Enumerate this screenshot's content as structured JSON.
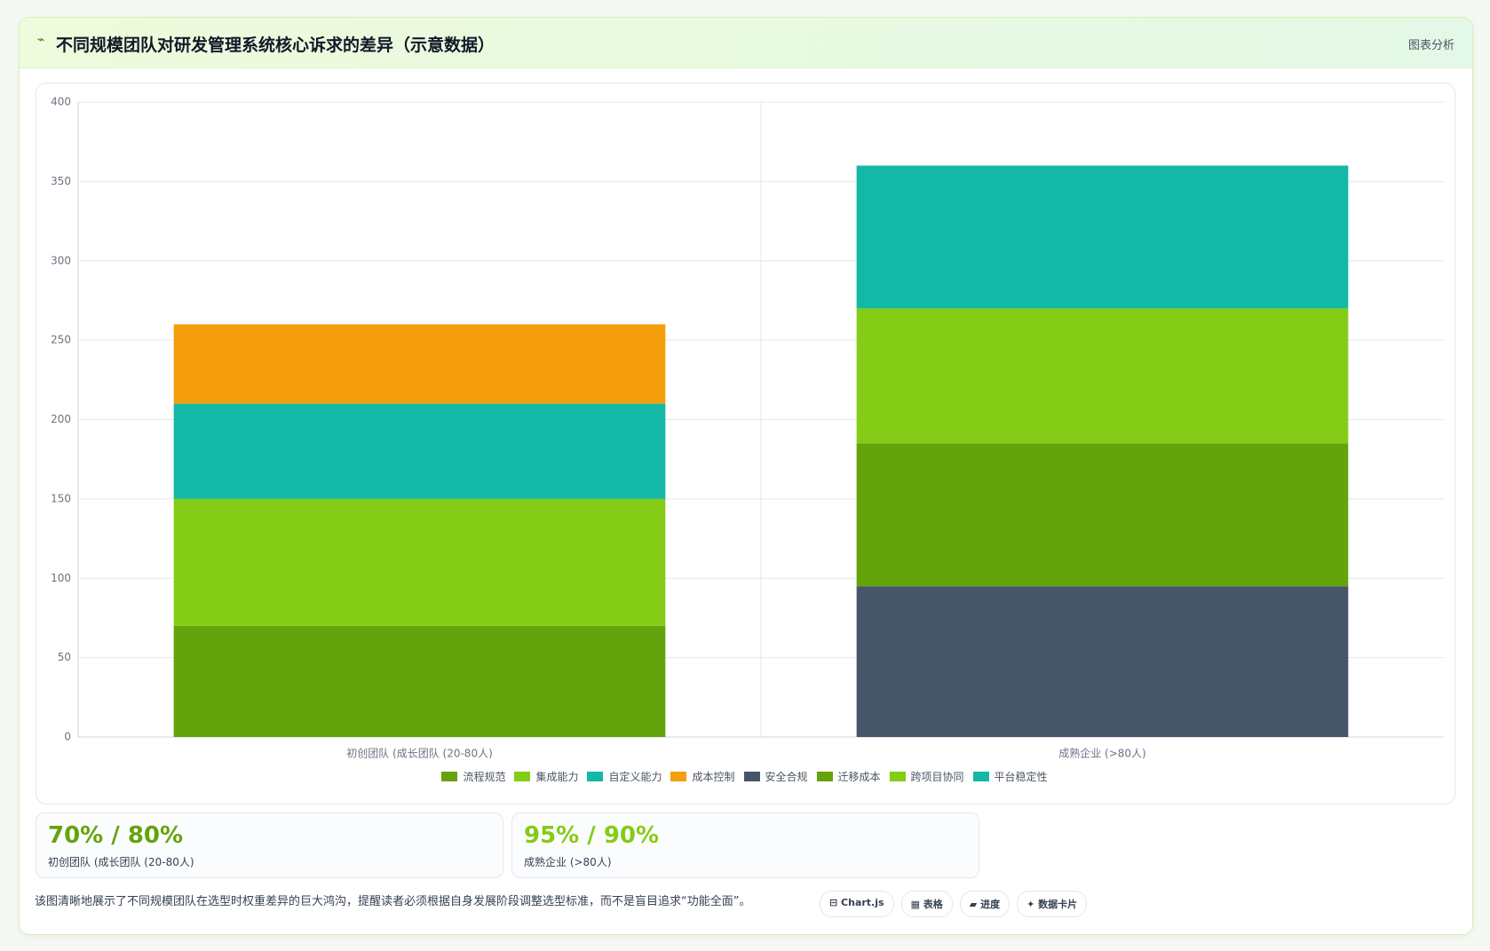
{
  "header": {
    "icon": "⌁",
    "title": "不同规模团队对研发管理系统核心诉求的差异（示意数据）",
    "tag": "图表分析"
  },
  "chart_data": {
    "type": "bar",
    "stacked": true,
    "categories": [
      "初创团队 (成长团队 (20-80人)",
      "成熟企业 (>80人)"
    ],
    "series": [
      {
        "name": "流程规范",
        "color": "#65a30d",
        "values": [
          70,
          null
        ]
      },
      {
        "name": "集成能力",
        "color": "#84cc16",
        "values": [
          80,
          null
        ]
      },
      {
        "name": "自定义能力",
        "color": "#14b8a6",
        "values": [
          60,
          null
        ]
      },
      {
        "name": "成本控制",
        "color": "#f59e0b",
        "values": [
          50,
          null
        ]
      },
      {
        "name": "安全合规",
        "color": "#475569",
        "values": [
          null,
          95
        ]
      },
      {
        "name": "迁移成本",
        "color": "#65a30d",
        "values": [
          null,
          90
        ]
      },
      {
        "name": "跨项目协同",
        "color": "#84cc16",
        "values": [
          null,
          85
        ]
      },
      {
        "name": "平台稳定性",
        "color": "#14b8a6",
        "values": [
          null,
          90
        ]
      }
    ],
    "ylim": [
      0,
      400
    ],
    "yticks": [
      0,
      50,
      100,
      150,
      200,
      250,
      300,
      350,
      400
    ],
    "grid": true,
    "legend": "bottom"
  },
  "cards": [
    {
      "value": "70% / 80%",
      "label": "初创团队 (成长团队 (20-80人)",
      "color": "#65a30d"
    },
    {
      "value": "95% / 90%",
      "label": "成熟企业 (>80人)",
      "color": "#84cc16"
    }
  ],
  "note": "该图清晰地展示了不同规模团队在选型时权重差异的巨大鸿沟，提醒读者必须根据自身发展阶段调整选型标准，而不是盲目追求“功能全面”。",
  "buttons": [
    "⊟ Chart.js",
    "▦ 表格",
    "▰ 进度",
    "✦ 数据卡片"
  ]
}
